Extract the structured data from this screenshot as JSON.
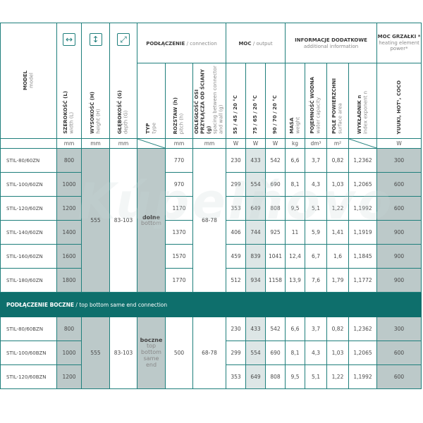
{
  "header": {
    "model": {
      "title": "MODEL",
      "sub": "model"
    },
    "width": {
      "title": "SZEROKOŚĆ (L)",
      "sub": "width (L)",
      "unit": "mm",
      "icon": "horizontal-arrows-icon"
    },
    "height": {
      "title": "WYSOKOŚĆ (H)",
      "sub": "height (H)",
      "unit": "mm",
      "icon": "vertical-arrows-icon"
    },
    "depth": {
      "title": "GŁĘBOKOŚĆ (G)",
      "sub": "depth (G)",
      "unit": "mm",
      "icon": "diagonal-arrows-icon"
    },
    "connection": {
      "title": "PODŁĄCZENIE",
      "sub": "/ connection"
    },
    "type": {
      "title": "TYP",
      "sub": "type"
    },
    "pitch": {
      "title": "ROZSTAW (h)",
      "sub": "pitch (h)",
      "unit": "mm"
    },
    "spacing": {
      "title": "ODLEGŁOŚĆ OSI PRZYŁĄCZA OD ŚCIANY (g)",
      "sub": "spacing between connector and wall (g)",
      "unit": "mm"
    },
    "output": {
      "title": "MOC",
      "sub": "/ output"
    },
    "out1": {
      "title": "55 / 45 / 20 °C",
      "unit": "W"
    },
    "out2": {
      "title": "75 / 65 / 20 °C",
      "unit": "W"
    },
    "out3": {
      "title": "90 / 70 / 20 °C",
      "unit": "W"
    },
    "additional": {
      "title": "INFORMACJE DODATKOWE",
      "sub": "additional information"
    },
    "weight": {
      "title": "MASA",
      "sub": "weight",
      "unit": "kg"
    },
    "water": {
      "title": "POJEMNOŚĆ WODNA",
      "sub": "water capacity",
      "unit": "dm³"
    },
    "surface": {
      "title": "POLE POWIERZCHNI",
      "sub": "surface area",
      "unit": "m²"
    },
    "exponent": {
      "title": "WYKŁADNIK n",
      "sub": "index exponent n"
    },
    "heater": {
      "title": "MOC GRZAŁKI *",
      "sub": "heating element power*",
      "col": "YUUKI, HOT¹, COCO",
      "unit": "W"
    }
  },
  "section1": {
    "height": "555",
    "depth": "83-103",
    "type_main": "dolne",
    "type_sub": "bottom",
    "spacing": "68-78",
    "rows": [
      {
        "model": "STIL-80/60ZN",
        "width": "800",
        "pitch": "770",
        "o1": "230",
        "o2": "433",
        "o3": "542",
        "weight": "6,6",
        "water": "3,7",
        "surface": "0,82",
        "n": "1,2362",
        "heater": "300"
      },
      {
        "model": "STIL-100/60ZN",
        "width": "1000",
        "pitch": "970",
        "o1": "299",
        "o2": "554",
        "o3": "690",
        "weight": "8,1",
        "water": "4,3",
        "surface": "1,03",
        "n": "1,2065",
        "heater": "600"
      },
      {
        "model": "STIL-120/60ZN",
        "width": "1200",
        "pitch": "1170",
        "o1": "353",
        "o2": "649",
        "o3": "808",
        "weight": "9,5",
        "water": "5,1",
        "surface": "1,22",
        "n": "1,1992",
        "heater": "600"
      },
      {
        "model": "STIL-140/60ZN",
        "width": "1400",
        "pitch": "1370",
        "o1": "406",
        "o2": "744",
        "o3": "925",
        "weight": "11",
        "water": "5,9",
        "surface": "1,41",
        "n": "1,1919",
        "heater": "900"
      },
      {
        "model": "STIL-160/60ZN",
        "width": "1600",
        "pitch": "1570",
        "o1": "459",
        "o2": "839",
        "o3": "1041",
        "weight": "12,4",
        "water": "6,7",
        "surface": "1,6",
        "n": "1,1845",
        "heater": "900"
      },
      {
        "model": "STIL-180/60ZN",
        "width": "1800",
        "pitch": "1770",
        "o1": "512",
        "o2": "934",
        "o3": "1158",
        "weight": "13,9",
        "water": "7,6",
        "surface": "1,79",
        "n": "1,1772",
        "heater": "900"
      }
    ]
  },
  "section2": {
    "title_main": "PODŁĄCZENIE BOCZNE",
    "title_sub": " / top bottom same end connection",
    "height": "555",
    "depth": "83-103",
    "type_main": "boczne",
    "type_sub": "top bottom same end",
    "pitch": "500",
    "spacing": "68-78",
    "rows": [
      {
        "model": "STIL-80/60BZN",
        "width": "800",
        "o1": "230",
        "o2": "433",
        "o3": "542",
        "weight": "6,6",
        "water": "3,7",
        "surface": "0,82",
        "n": "1,2362",
        "heater": "300"
      },
      {
        "model": "STIL-100/60BZN",
        "width": "1000",
        "o1": "299",
        "o2": "554",
        "o3": "690",
        "weight": "8,1",
        "water": "4,3",
        "surface": "1,03",
        "n": "1,2065",
        "heater": "600"
      },
      {
        "model": "STIL-120/60BZN",
        "width": "1200",
        "o1": "353",
        "o2": "649",
        "o3": "808",
        "weight": "9,5",
        "water": "5,1",
        "surface": "1,22",
        "n": "1,1992",
        "heater": "600"
      }
    ]
  },
  "watermark": "Kúpelňovo",
  "colors": {
    "border": "#1f7f7c",
    "band": "#0e6f6c",
    "shade_dark": "#bcc9c9",
    "shade_light": "#dde6e6"
  }
}
